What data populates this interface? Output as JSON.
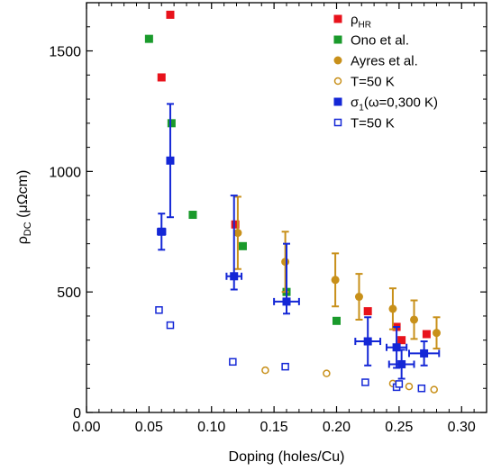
{
  "chart_data": {
    "type": "scatter",
    "xlabel": "Doping (holes/Cu)",
    "ylabel": "ρDC (μΩcm)",
    "xlim": [
      0.0,
      0.32
    ],
    "ylim": [
      0,
      1700
    ],
    "xticks": [
      "0.00",
      "0.05",
      "0.10",
      "0.15",
      "0.20",
      "0.25",
      "0.30"
    ],
    "xtick_values": [
      0.0,
      0.05,
      0.1,
      0.15,
      0.2,
      0.25,
      0.3
    ],
    "yticks": [
      "0",
      "500",
      "1000",
      "1500"
    ],
    "ytick_values": [
      0,
      500,
      1000,
      1500
    ],
    "grid": false,
    "legend_position": "top-right",
    "colors": {
      "red": "#e8121b",
      "green": "#1a9a2b",
      "gold": "#c8901a",
      "blue": "#1427d6"
    },
    "series": [
      {
        "name": "ρHR",
        "marker": "filled-square",
        "color": "#e8121b",
        "points": [
          {
            "x": 0.067,
            "y": 1650
          },
          {
            "x": 0.06,
            "y": 1390
          },
          {
            "x": 0.119,
            "y": 780
          },
          {
            "x": 0.225,
            "y": 420
          },
          {
            "x": 0.248,
            "y": 355
          },
          {
            "x": 0.252,
            "y": 300
          },
          {
            "x": 0.272,
            "y": 325
          }
        ]
      },
      {
        "name": "Ono et al.",
        "marker": "filled-square",
        "color": "#1a9a2b",
        "points": [
          {
            "x": 0.05,
            "y": 1550
          },
          {
            "x": 0.068,
            "y": 1200
          },
          {
            "x": 0.085,
            "y": 820
          },
          {
            "x": 0.125,
            "y": 690
          },
          {
            "x": 0.16,
            "y": 500
          },
          {
            "x": 0.2,
            "y": 380
          }
        ]
      },
      {
        "name": "Ayres et al.",
        "marker": "filled-circle",
        "color": "#c8901a",
        "points": [
          {
            "x": 0.121,
            "y": 745,
            "yerr": 150
          },
          {
            "x": 0.159,
            "y": 625,
            "yerr": 125
          },
          {
            "x": 0.199,
            "y": 550,
            "yerr": 110
          },
          {
            "x": 0.218,
            "y": 480,
            "yerr": 95
          },
          {
            "x": 0.245,
            "y": 430,
            "yerr": 85
          },
          {
            "x": 0.262,
            "y": 385,
            "yerr": 80
          },
          {
            "x": 0.28,
            "y": 330,
            "yerr": 65
          }
        ]
      },
      {
        "name": "T=50 K",
        "marker": "open-circle",
        "color": "#c8901a",
        "points": [
          {
            "x": 0.143,
            "y": 175
          },
          {
            "x": 0.192,
            "y": 162
          },
          {
            "x": 0.245,
            "y": 120
          },
          {
            "x": 0.258,
            "y": 108
          },
          {
            "x": 0.278,
            "y": 95
          }
        ]
      },
      {
        "name": "σ1(ω=0,300 K)",
        "marker": "filled-square",
        "color": "#1427d6",
        "points": [
          {
            "x": 0.067,
            "y": 1045,
            "yerr": 235
          },
          {
            "x": 0.06,
            "y": 750,
            "yerr": 75,
            "xerr": 0.003
          },
          {
            "x": 0.118,
            "y": 565,
            "yerr": [
              55,
              335
            ],
            "xerr": 0.006
          },
          {
            "x": 0.16,
            "y": 460,
            "yerr": [
              50,
              240
            ],
            "xerr": 0.01
          },
          {
            "x": 0.225,
            "y": 295,
            "yerr": 100,
            "xerr": 0.01
          },
          {
            "x": 0.248,
            "y": 270,
            "yerr": 85,
            "xerr": 0.008
          },
          {
            "x": 0.252,
            "y": 200,
            "yerr": 60,
            "xerr": 0.01
          },
          {
            "x": 0.27,
            "y": 245,
            "yerr": 50,
            "xerr": 0.012
          }
        ]
      },
      {
        "name": "T=50 K",
        "marker": "open-square",
        "color": "#1427d6",
        "points": [
          {
            "x": 0.058,
            "y": 425
          },
          {
            "x": 0.067,
            "y": 362
          },
          {
            "x": 0.117,
            "y": 210
          },
          {
            "x": 0.159,
            "y": 190
          },
          {
            "x": 0.223,
            "y": 125
          },
          {
            "x": 0.248,
            "y": 105
          },
          {
            "x": 0.25,
            "y": 118
          },
          {
            "x": 0.268,
            "y": 100
          }
        ]
      }
    ],
    "legend": [
      {
        "text": "ρHR",
        "marker": "filled-square",
        "color": "#e8121b"
      },
      {
        "text": "Ono et al.",
        "marker": "filled-square",
        "color": "#1a9a2b"
      },
      {
        "text": "Ayres et al.",
        "marker": "filled-circle",
        "color": "#c8901a"
      },
      {
        "text": "T=50 K",
        "marker": "open-circle",
        "color": "#c8901a"
      },
      {
        "text": "σ1(ω=0,300 K)",
        "marker": "filled-square",
        "color": "#1427d6"
      },
      {
        "text": "T=50 K",
        "marker": "open-square",
        "color": "#1427d6"
      }
    ]
  }
}
